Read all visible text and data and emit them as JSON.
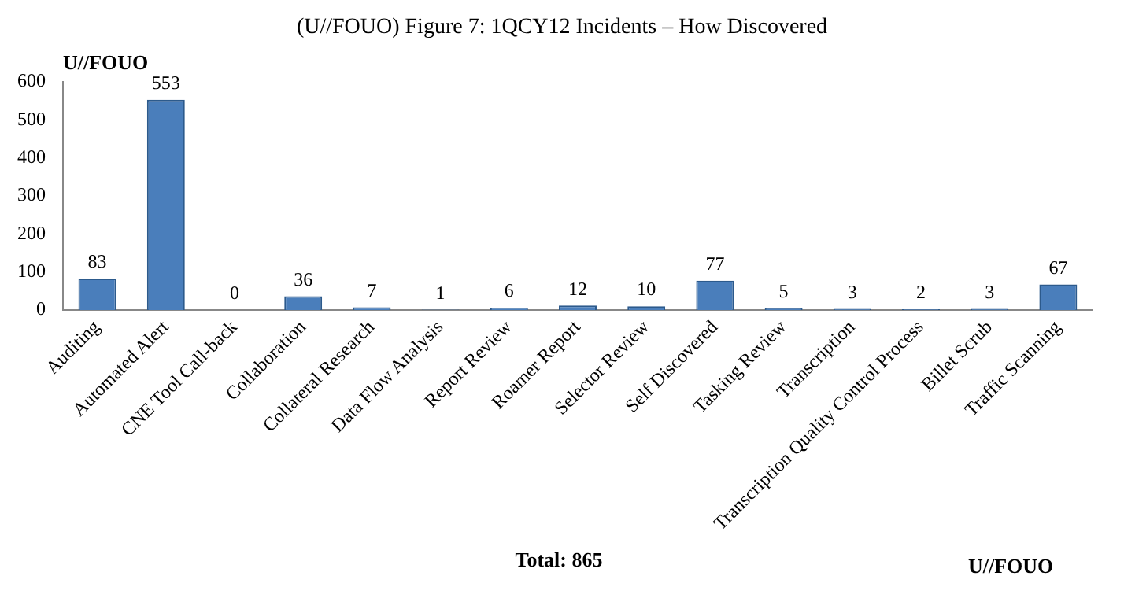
{
  "chart_data": {
    "type": "bar",
    "title": "(U//FOUO) Figure 7: 1QCY12 Incidents – How Discovered",
    "categories": [
      "Auditing",
      "Automated Alert",
      "CNE Tool Call-back",
      "Collaboration",
      "Collateral Research",
      "Data Flow Analysis",
      "Report Review",
      "Roamer Report",
      "Selector Review",
      "Self Discovered",
      "Tasking Review",
      "Transcription",
      "Transcription Quality Control Process",
      "Billet Scrub",
      "Traffic Scanning"
    ],
    "values": [
      83,
      553,
      0,
      36,
      7,
      1,
      6,
      12,
      10,
      77,
      5,
      3,
      2,
      3,
      67
    ],
    "color": "#4a7ebb",
    "ylim": [
      0,
      600
    ],
    "yticks": [
      0,
      100,
      200,
      300,
      400,
      500,
      600
    ],
    "grid": false,
    "legend": false,
    "data_labels": true,
    "annotations": [
      "U//FOUO",
      "Total: 865",
      "U//FOUO"
    ]
  }
}
